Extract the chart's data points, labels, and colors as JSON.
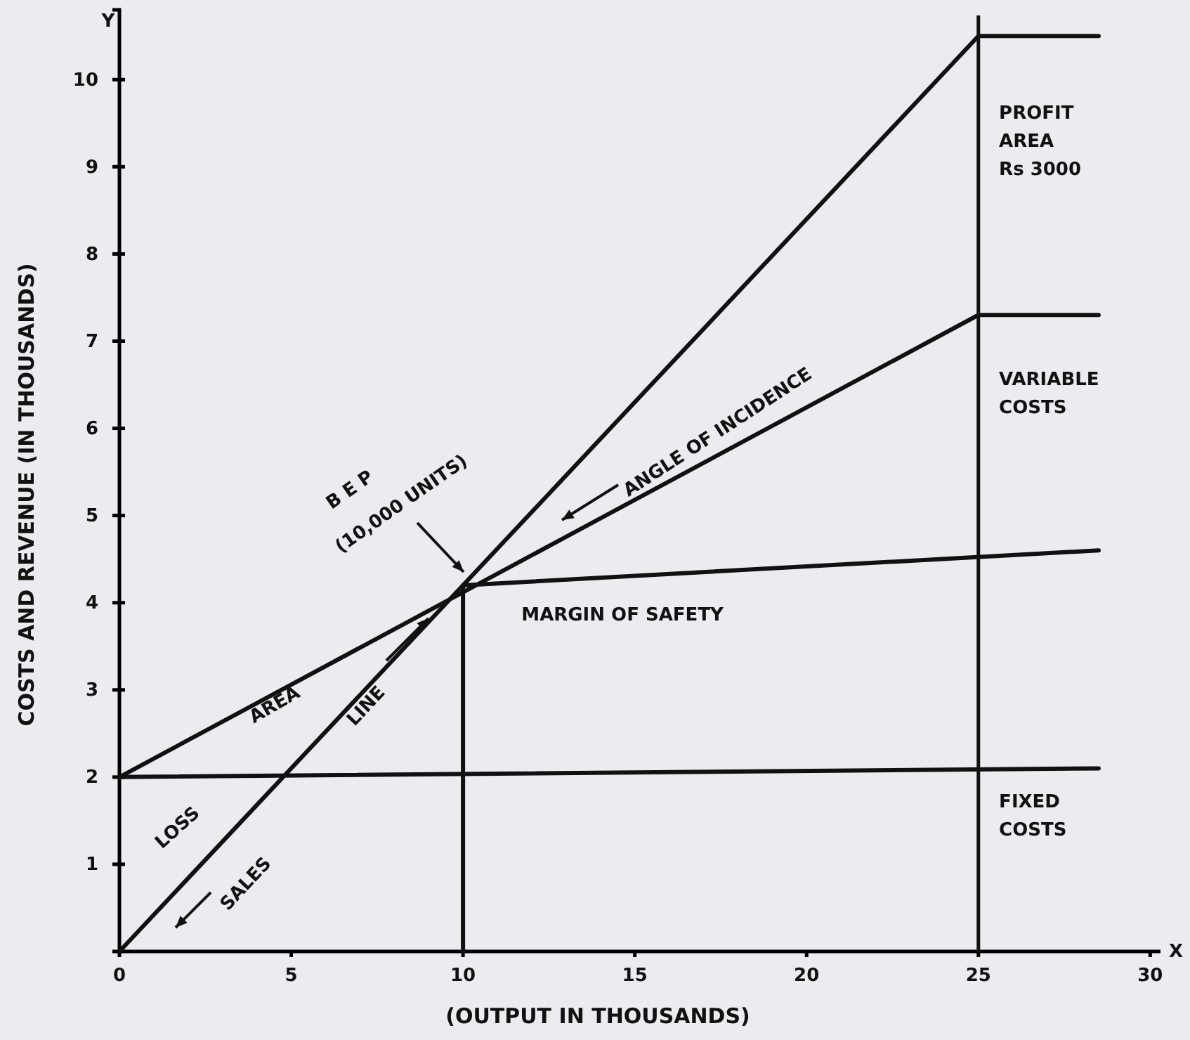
{
  "chart_data": {
    "type": "line",
    "xlabel": "(OUTPUT IN THOUSANDS)",
    "ylabel": "COSTS AND REVENUE (IN THOUSANDS)",
    "xlim": [
      0,
      30.3
    ],
    "ylim": [
      0,
      10.8
    ],
    "xticks": [
      0,
      5,
      10,
      15,
      20,
      25,
      30
    ],
    "yticks": [
      1,
      2,
      3,
      4,
      5,
      6,
      7,
      8,
      9,
      10
    ],
    "marker": "none",
    "line_style": "solid",
    "series": [
      {
        "color": "#111111",
        "x": [
          0,
          25,
          28.5
        ],
        "values": [
          0,
          10.5,
          10.5
        ]
      },
      {
        "color": "#111111",
        "x": [
          0,
          25,
          28.5
        ],
        "values": [
          2,
          7.3,
          7.3
        ]
      },
      {
        "color": "#111111",
        "x": [
          0,
          28.5
        ],
        "values": [
          2,
          2.1
        ]
      },
      {
        "color": "#111111",
        "x": [
          10,
          10,
          28.5
        ],
        "values": [
          0,
          4.2,
          4.6
        ]
      }
    ],
    "ref_lines": [
      {
        "axis": "x",
        "value": 25,
        "color": "#111111"
      }
    ],
    "annotations": [
      "B E P",
      "(10,000 UNITS)",
      "ANGLE OF INCIDENCE",
      "PROFIT\nAREA\nRs 3000",
      "VARIABLE\nCOSTS",
      "MARGIN OF SAFETY",
      "FIXED\nCOSTS",
      "LOSS",
      "AREA",
      "SALES",
      "LINE",
      "Y",
      "X"
    ]
  }
}
